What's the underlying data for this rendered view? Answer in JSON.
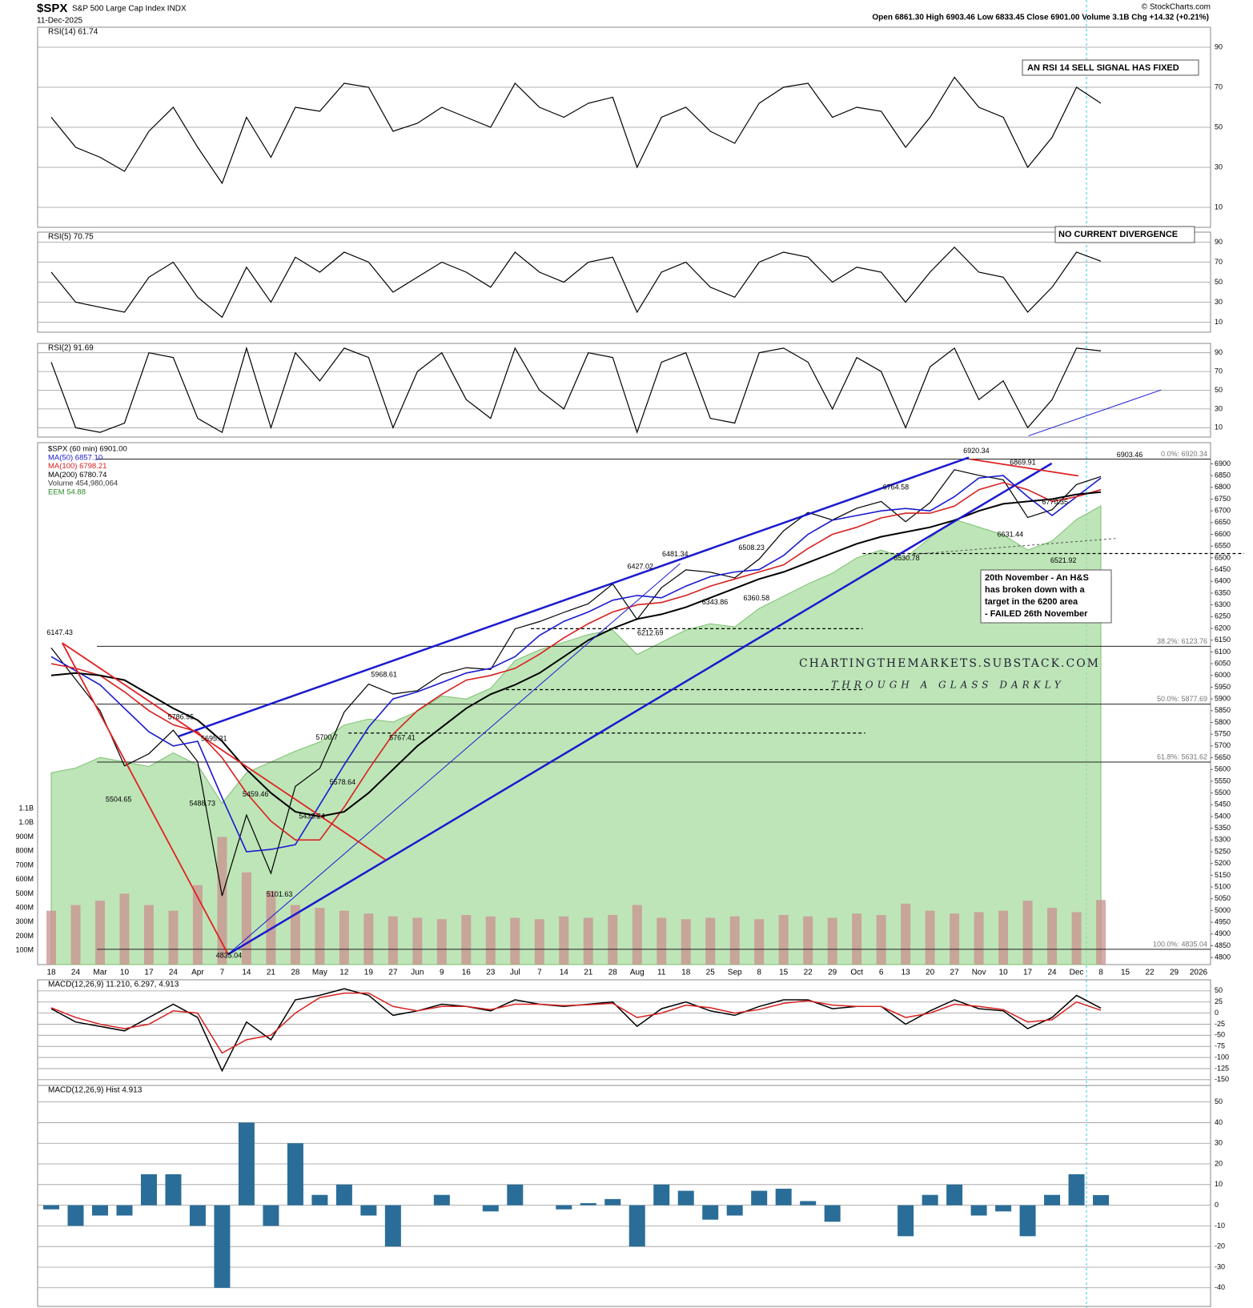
{
  "header": {
    "symbol": "$SPX",
    "name": "S&P 500 Large Cap Index INDX",
    "date": "11-Dec-2025",
    "quote": "Open 6861.30  High 6903.46  Low 6833.45  Close 6901.00  Volume 3.1B  Chg +14.32 (+0.21%)",
    "copyright": "© StockCharts.com"
  },
  "notes": {
    "rsi14": "AN RSI 14 SELL SIGNAL HAS FIXED",
    "rsi5": "NO CURRENT DIVERGENCE",
    "hs": [
      "20th November - An H&S",
      "has broken down with a",
      "target in the 6200 area",
      "- FAILED 26th November"
    ],
    "watermark": "CHARTINGTHEMARKETS.SUBSTACK.COM",
    "tagline": "THROUGH A GLASS DARKLY"
  },
  "chart_data": [
    {
      "type": "line",
      "title": "RSI(14) 61.74",
      "color": "#000000",
      "ylim": [
        0,
        100
      ],
      "yticks": [
        10,
        30,
        50,
        70,
        90
      ],
      "grid": true,
      "values": [
        55,
        40,
        35,
        28,
        48,
        60,
        40,
        22,
        55,
        35,
        60,
        58,
        72,
        70,
        48,
        52,
        60,
        55,
        50,
        72,
        60,
        55,
        62,
        65,
        30,
        55,
        60,
        48,
        42,
        62,
        70,
        72,
        55,
        60,
        58,
        40,
        55,
        75,
        60,
        55,
        30,
        45,
        70,
        62,
        null,
        null,
        null,
        null
      ]
    },
    {
      "type": "line",
      "title": "RSI(5) 70.75",
      "color": "#000000",
      "ylim": [
        0,
        100
      ],
      "yticks": [
        10,
        30,
        50,
        70,
        90
      ],
      "grid": true,
      "values": [
        60,
        30,
        25,
        20,
        55,
        70,
        35,
        15,
        65,
        30,
        75,
        60,
        80,
        70,
        40,
        55,
        70,
        60,
        45,
        80,
        60,
        50,
        70,
        75,
        20,
        60,
        70,
        45,
        35,
        70,
        80,
        75,
        50,
        65,
        60,
        30,
        60,
        85,
        60,
        55,
        20,
        45,
        80,
        71,
        null,
        null,
        null,
        null
      ]
    },
    {
      "type": "line",
      "title": "RSI(2) 91.69",
      "color": "#000000",
      "ylim": [
        0,
        100
      ],
      "yticks": [
        10,
        30,
        50,
        70,
        90
      ],
      "grid": true,
      "values": [
        80,
        10,
        5,
        15,
        90,
        85,
        20,
        5,
        95,
        10,
        90,
        60,
        95,
        85,
        10,
        70,
        90,
        40,
        20,
        95,
        50,
        30,
        90,
        85,
        5,
        80,
        90,
        20,
        15,
        90,
        95,
        80,
        30,
        85,
        70,
        10,
        75,
        95,
        40,
        60,
        10,
        40,
        95,
        92,
        null,
        null,
        null,
        null
      ]
    },
    {
      "type": "line",
      "ylim": [
        4770,
        6990
      ],
      "yticks": [
        4800,
        4850,
        4900,
        4950,
        5000,
        5050,
        5100,
        5150,
        5200,
        5250,
        5300,
        5350,
        5400,
        5450,
        5500,
        5550,
        5600,
        5650,
        5700,
        5750,
        5800,
        5850,
        5900,
        5950,
        6000,
        6050,
        6100,
        6150,
        6200,
        6250,
        6300,
        6350,
        6400,
        6450,
        6500,
        6550,
        6600,
        6650,
        6700,
        6750,
        6800,
        6850,
        6900
      ],
      "categories": [
        "18",
        "24",
        "Mar",
        "10",
        "17",
        "24",
        "Apr",
        "7",
        "14",
        "21",
        "28",
        "May",
        "12",
        "19",
        "27",
        "Jun",
        "9",
        "16",
        "23",
        "Jul",
        "7",
        "14",
        "21",
        "28",
        "Aug",
        "11",
        "18",
        "25",
        "Sep",
        "8",
        "15",
        "22",
        "29",
        "Oct",
        "6",
        "13",
        "20",
        "27",
        "Nov",
        "10",
        "17",
        "24",
        "Dec",
        "8",
        "15",
        "22",
        "29",
        "2026"
      ],
      "series": [
        {
          "name": "$SPX (60 min) 6901.00",
          "color": "#000000",
          "values": [
            6117,
            5983,
            5850,
            5615,
            5667,
            5767,
            5633,
            5062,
            5406,
            5158,
            5528,
            5605,
            5844,
            5963,
            5921,
            5935,
            6005,
            6033,
            6025,
            6198,
            6229,
            6268,
            6305,
            6389,
            6238,
            6373,
            6449,
            6439,
            6415,
            6495,
            6615,
            6693,
            6661,
            6711,
            6740,
            6654,
            6735,
            6875,
            6851,
            6832,
            6672,
            6705,
            6812,
            6846,
            null,
            null,
            null,
            null
          ]
        },
        {
          "name": "MA(50) 6857.10",
          "color": "#1a1ad0",
          "values": [
            6080,
            6020,
            5960,
            5860,
            5760,
            5700,
            5720,
            5480,
            5250,
            5260,
            5280,
            5450,
            5620,
            5780,
            5900,
            5930,
            5970,
            6010,
            6030,
            6080,
            6170,
            6230,
            6270,
            6320,
            6340,
            6330,
            6380,
            6420,
            6440,
            6450,
            6510,
            6600,
            6660,
            6680,
            6700,
            6710,
            6700,
            6760,
            6840,
            6850,
            6760,
            6680,
            6760,
            6840,
            null,
            null,
            null,
            null
          ]
        },
        {
          "name": "MA(100) 6798.21",
          "color": "#d62020",
          "values": [
            6050,
            6030,
            6000,
            5930,
            5850,
            5790,
            5760,
            5650,
            5500,
            5380,
            5300,
            5300,
            5440,
            5600,
            5750,
            5850,
            5920,
            5980,
            6000,
            6030,
            6090,
            6160,
            6220,
            6270,
            6300,
            6310,
            6340,
            6380,
            6410,
            6440,
            6470,
            6540,
            6600,
            6630,
            6670,
            6690,
            6690,
            6720,
            6790,
            6820,
            6790,
            6740,
            6760,
            6790,
            null,
            null,
            null,
            null
          ]
        },
        {
          "name": "MA(200) 6780.74",
          "color": "#000000",
          "values": [
            6000,
            6010,
            6000,
            5980,
            5920,
            5860,
            5810,
            5720,
            5600,
            5500,
            5420,
            5400,
            5420,
            5500,
            5600,
            5700,
            5780,
            5860,
            5920,
            5960,
            6010,
            6080,
            6150,
            6200,
            6240,
            6260,
            6290,
            6330,
            6370,
            6410,
            6440,
            6480,
            6520,
            6560,
            6590,
            6610,
            6630,
            6660,
            6700,
            6730,
            6740,
            6750,
            6770,
            6780,
            null,
            null,
            null,
            null
          ]
        }
      ],
      "volume": {
        "label": "Volume 454,980,064",
        "color": "#c98f8f",
        "ylim": [
          0,
          3680000000
        ],
        "yticks": [
          {
            "value": 100000000,
            "label": "100M"
          },
          {
            "value": 200000000,
            "label": "200M"
          },
          {
            "value": 300000000,
            "label": "300M"
          },
          {
            "value": 400000000,
            "label": "400M"
          },
          {
            "value": 500000000,
            "label": "500M"
          },
          {
            "value": 600000000,
            "label": "600M"
          },
          {
            "value": 700000000,
            "label": "700M"
          },
          {
            "value": 800000000,
            "label": "800M"
          },
          {
            "value": 900000000,
            "label": "900M"
          },
          {
            "value": 1000000000,
            "label": "1.0B"
          },
          {
            "value": 1100000000,
            "label": "1.1B"
          }
        ],
        "values": [
          380000000,
          420000000,
          450000000,
          500000000,
          420000000,
          380000000,
          560000000,
          900000000,
          650000000,
          520000000,
          420000000,
          400000000,
          380000000,
          360000000,
          340000000,
          330000000,
          320000000,
          350000000,
          340000000,
          330000000,
          320000000,
          340000000,
          330000000,
          350000000,
          420000000,
          330000000,
          320000000,
          330000000,
          340000000,
          320000000,
          350000000,
          340000000,
          330000000,
          360000000,
          350000000,
          430000000,
          380000000,
          360000000,
          370000000,
          380000000,
          450000000,
          400000000,
          370000000,
          455000000,
          null,
          null,
          null,
          null
        ]
      },
      "eem": {
        "label": "EEM 54.88",
        "color": "#a8dca0",
        "ylim": [
          25,
          59
        ],
        "values": [
          37.5,
          37.8,
          38.5,
          38.2,
          37.9,
          38.8,
          38.0,
          35.5,
          37.5,
          38.2,
          38.9,
          39.5,
          40.6,
          41.0,
          40.8,
          41.5,
          42.5,
          42.3,
          43.0,
          44.8,
          45.5,
          46.0,
          46.5,
          46.8,
          45.2,
          46.0,
          46.8,
          47.2,
          47.0,
          48.2,
          49.0,
          49.8,
          50.5,
          51.5,
          52.0,
          51.5,
          52.8,
          54.0,
          53.5,
          53.0,
          52.0,
          52.6,
          54.0,
          54.88,
          null,
          null,
          null,
          null
        ]
      },
      "fib_levels": [
        {
          "value": 6920.34,
          "label": "0.0%: 6920.34"
        },
        {
          "value": 6123.76,
          "label": "38.2%: 6123.76"
        },
        {
          "value": 5877.69,
          "label": "50.0%: 5877.69"
        },
        {
          "value": 5631.62,
          "label": "61.8%: 5631.62"
        },
        {
          "value": 4835.04,
          "label": "100.0%: 4835.04"
        }
      ],
      "price_labels": [
        6147.43,
        5786.95,
        5695.31,
        5504.65,
        5488.73,
        5459.46,
        5433.24,
        5101.63,
        4835.04,
        5578.64,
        5700.7,
        5968.61,
        5767.41,
        6427.02,
        6481.34,
        6212.69,
        6343.86,
        6508.23,
        6360.58,
        6764.58,
        6920.34,
        6869.91,
        6770.35,
        6631.44,
        6530.78,
        6521.92,
        6903.46
      ]
    },
    {
      "type": "line",
      "title": "MACD(12,26,9) 11.210, 6.297, 4.913",
      "ylim": [
        -163,
        75
      ],
      "yticks": [
        50,
        25,
        0,
        -25,
        -50,
        -75,
        -100,
        -125,
        -150
      ],
      "grid": true,
      "series": [
        {
          "color": "#000000",
          "values": [
            10,
            -20,
            -30,
            -40,
            -10,
            20,
            -10,
            -130,
            -20,
            -60,
            30,
            40,
            55,
            40,
            -5,
            5,
            20,
            15,
            5,
            30,
            20,
            15,
            20,
            25,
            -30,
            10,
            25,
            5,
            -5,
            15,
            30,
            30,
            10,
            15,
            15,
            -25,
            5,
            30,
            10,
            5,
            -35,
            -10,
            40,
            11.21,
            null,
            null,
            null,
            null
          ]
        },
        {
          "color": "#d62020",
          "values": [
            12,
            -10,
            -25,
            -35,
            -25,
            5,
            0,
            -90,
            -60,
            -50,
            0,
            35,
            45,
            45,
            15,
            5,
            15,
            15,
            8,
            20,
            20,
            17,
            19,
            22,
            -10,
            0,
            18,
            12,
            0,
            8,
            22,
            28,
            18,
            15,
            15,
            -10,
            0,
            20,
            15,
            8,
            -20,
            -15,
            25,
            6.297,
            null,
            null,
            null,
            null
          ]
        }
      ]
    },
    {
      "type": "bar",
      "title": "MACD(12,26,9) Hist 4.913",
      "color": "#2a6d98",
      "ylim": [
        -49,
        58
      ],
      "yticks": [
        50,
        40,
        30,
        20,
        10,
        0,
        -10,
        -20,
        -30,
        -40
      ],
      "grid": true,
      "values": [
        -2,
        -10,
        -5,
        -5,
        15,
        15,
        -10,
        -40,
        40,
        -10,
        30,
        5,
        10,
        -5,
        -20,
        0,
        5,
        0,
        -3,
        10,
        0,
        -2,
        1,
        3,
        -20,
        10,
        7,
        -7,
        -5,
        7,
        8,
        2,
        -8,
        0,
        0,
        -15,
        5,
        10,
        -5,
        -3,
        -15,
        5,
        15,
        4.913,
        null,
        null,
        null,
        null
      ]
    }
  ]
}
